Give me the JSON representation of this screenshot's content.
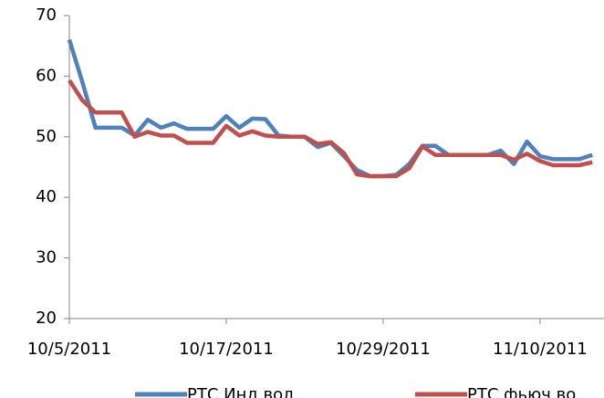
{
  "chart_data": {
    "type": "line",
    "x": [
      "10/5/2011",
      "10/6/2011",
      "10/7/2011",
      "10/8/2011",
      "10/9/2011",
      "10/10/2011",
      "10/11/2011",
      "10/12/2011",
      "10/13/2011",
      "10/14/2011",
      "10/15/2011",
      "10/16/2011",
      "10/17/2011",
      "10/18/2011",
      "10/19/2011",
      "10/20/2011",
      "10/21/2011",
      "10/22/2011",
      "10/23/2011",
      "10/24/2011",
      "10/25/2011",
      "10/26/2011",
      "10/27/2011",
      "10/28/2011",
      "10/29/2011",
      "10/30/2011",
      "10/31/2011",
      "11/1/2011",
      "11/2/2011",
      "11/3/2011",
      "11/4/2011",
      "11/5/2011",
      "11/6/2011",
      "11/7/2011",
      "11/8/2011",
      "11/9/2011",
      "11/10/2011",
      "11/11/2011",
      "11/12/2011",
      "11/13/2011",
      "11/14/2011"
    ],
    "series": [
      {
        "name": "РТС Инд вол",
        "color": "#4f81bd",
        "values": [
          66,
          59,
          51.5,
          51.5,
          51.5,
          50.2,
          52.8,
          51.5,
          52.2,
          51.3,
          51.3,
          51.3,
          53.4,
          51.5,
          53,
          52.9,
          50.2,
          50,
          50,
          48.3,
          49,
          46.8,
          44.5,
          43.5,
          43.5,
          43.7,
          45.5,
          48.5,
          48.5,
          47,
          47,
          47,
          47,
          47.7,
          45.5,
          49.2,
          46.8,
          46.3,
          46.3,
          46.3,
          47
        ]
      },
      {
        "name": "РТС фьюч во",
        "color": "#c0504d",
        "values": [
          59.3,
          56,
          54,
          54,
          54,
          50,
          50.8,
          50.2,
          50.2,
          49,
          49,
          49,
          51.8,
          50.2,
          50.9,
          50.2,
          50,
          50,
          50,
          48.8,
          49.1,
          47.3,
          43.8,
          43.5,
          43.5,
          43.5,
          44.8,
          48.4,
          47,
          47,
          47,
          47,
          47,
          47,
          46.2,
          47.2,
          46,
          45.3,
          45.3,
          45.3,
          45.8
        ]
      }
    ],
    "xlim": [
      "10/5/2011",
      "11/14/2011"
    ],
    "xticks": [
      "10/5/2011",
      "10/17/2011",
      "10/29/2011",
      "11/10/2011"
    ],
    "ylim": [
      20,
      70
    ],
    "yticks": [
      20,
      30,
      40,
      50,
      60,
      70
    ],
    "legend": "bottom"
  }
}
